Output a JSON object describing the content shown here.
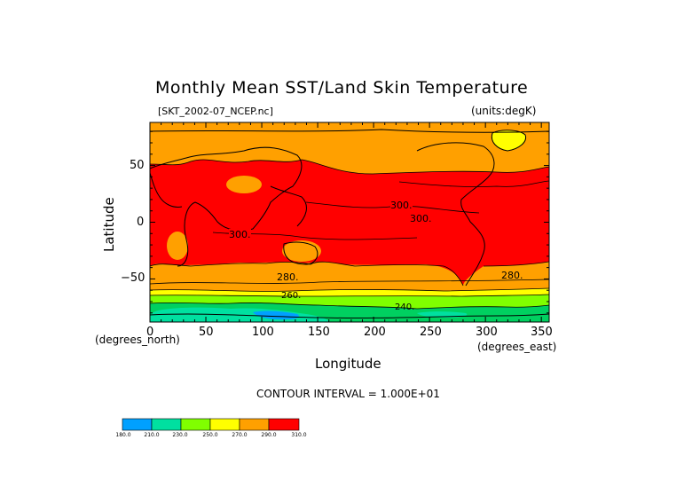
{
  "chart_data": {
    "type": "heatmap",
    "title": "Monthly Mean SST/Land Skin Temperature",
    "subtitle_left": "[SKT_2002-07_NCEP.nc]",
    "subtitle_right": "(units:degK)",
    "xlabel": "Longitude",
    "ylabel": "Latitude",
    "x_unit_label": "(degrees_east)",
    "y_unit_label": "(degrees_north)",
    "xlim": [
      0,
      357
    ],
    "ylim": [
      -88,
      88
    ],
    "x_ticks": [
      "0",
      "50",
      "100",
      "150",
      "200",
      "250",
      "300",
      "350"
    ],
    "y_ticks": [
      "50",
      "0",
      "−50"
    ],
    "contour_interval_text": "CONTOUR INTERVAL = 1.000E+01",
    "contour_labels": [
      "300.",
      "300.",
      "300.",
      "280.",
      "280.",
      "240.",
      "260."
    ],
    "colorbar": {
      "labels": [
        "180.0",
        "210.0",
        "230.0",
        "250.0",
        "270.0",
        "290.0",
        "310.0"
      ],
      "colors": [
        "#00a0ff",
        "#00e0a0",
        "#00d060",
        "#80ff00",
        "#ffff00",
        "#ffa000",
        "#ff0000"
      ]
    },
    "temperature_bands": [
      {
        "range_degK": "300-310",
        "color": "#ff0000"
      },
      {
        "range_degK": "280-300",
        "color": "#ffa000"
      },
      {
        "range_degK": "260-280",
        "color": "#ffff00"
      },
      {
        "range_degK": "240-260",
        "color": "#80ff00"
      },
      {
        "range_degK": "210-240",
        "color": "#00e0a0"
      },
      {
        "range_degK": "180-210",
        "color": "#00a0ff"
      }
    ]
  }
}
